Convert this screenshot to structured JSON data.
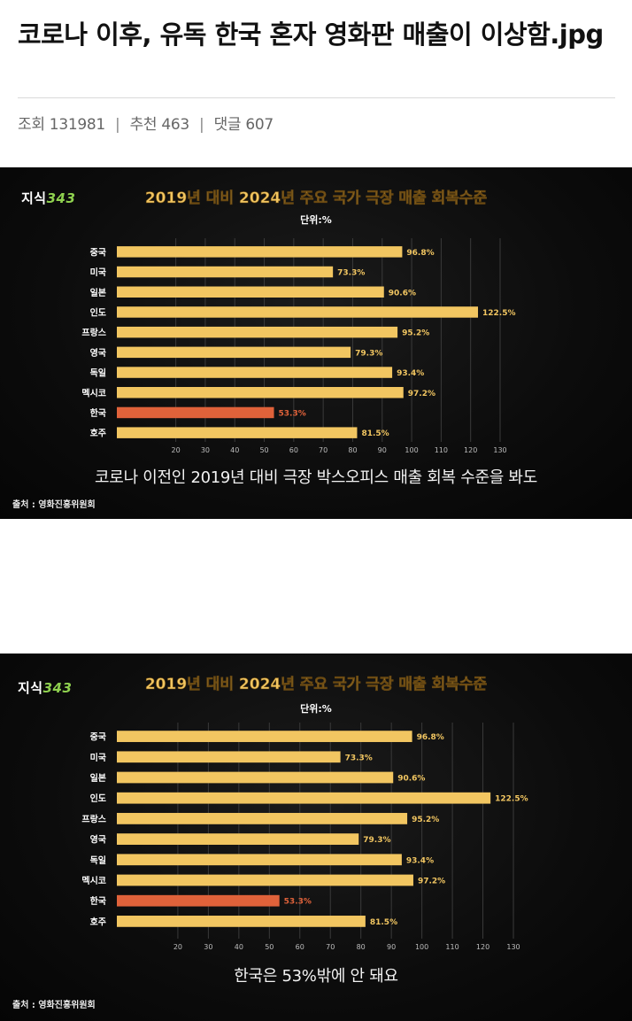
{
  "post": {
    "title": "코로나 이후, 유독 한국 혼자 영화판 매출이 이상함.jpg",
    "views_label": "조회",
    "views": "131981",
    "recommend_label": "추천",
    "recommend": "463",
    "comments_label": "댓글",
    "comments": "607",
    "separator": "|"
  },
  "logo": {
    "text": "지식",
    "number": "343"
  },
  "cards": [
    {
      "caption": "코로나 이전인 2019년 대비 극장 박스오피스 매출 회복 수준을 봐도",
      "source": "출처 : 영화진흥위원회"
    },
    {
      "caption": "한국은 53%밖에 안 돼요",
      "source": "출처 : 영화진흥위원회"
    }
  ],
  "chart_data": [
    {
      "type": "bar",
      "orientation": "horizontal",
      "title": "2019년 대비 2024년 주요 국가 극장 매출 회복수준",
      "unit_label": "단위:%",
      "categories": [
        "중국",
        "미국",
        "일본",
        "인도",
        "프랑스",
        "영국",
        "독일",
        "멕시코",
        "한국",
        "호주"
      ],
      "values": [
        96.8,
        73.3,
        90.6,
        122.5,
        95.2,
        79.3,
        93.4,
        97.2,
        53.3,
        81.5
      ],
      "value_labels": [
        "96.8%",
        "73.3%",
        "90.6%",
        "122.5%",
        "95.2%",
        "79.3%",
        "93.4%",
        "97.2%",
        "53.3%",
        "81.5%"
      ],
      "x_ticks": [
        20,
        30,
        40,
        50,
        60,
        70,
        80,
        90,
        100,
        110,
        120,
        130
      ],
      "xlim": [
        0,
        130
      ],
      "bar_color": "#f2c661",
      "highlight_color": "#e0623a",
      "highlight_category": "한국",
      "grid": true
    },
    {
      "type": "bar",
      "orientation": "horizontal",
      "title": "2019년 대비 2024년 주요 국가 극장 매출 회복수준",
      "unit_label": "단위:%",
      "categories": [
        "중국",
        "미국",
        "일본",
        "인도",
        "프랑스",
        "영국",
        "독일",
        "멕시코",
        "한국",
        "호주"
      ],
      "values": [
        96.8,
        73.3,
        90.6,
        122.5,
        95.2,
        79.3,
        93.4,
        97.2,
        53.3,
        81.5
      ],
      "value_labels": [
        "96.8%",
        "73.3%",
        "90.6%",
        "122.5%",
        "95.2%",
        "79.3%",
        "93.4%",
        "97.2%",
        "53.3%",
        "81.5%"
      ],
      "x_ticks": [
        20,
        30,
        40,
        50,
        60,
        70,
        80,
        90,
        100,
        110,
        120,
        130
      ],
      "xlim": [
        0,
        130
      ],
      "bar_color": "#f2c661",
      "highlight_color": "#e0623a",
      "highlight_category": "한국",
      "grid": true
    }
  ]
}
